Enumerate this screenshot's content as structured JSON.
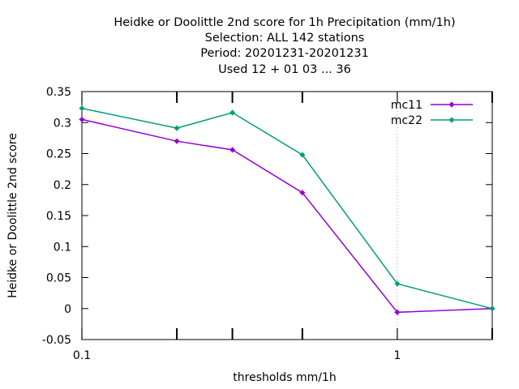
{
  "chart_data": {
    "type": "line",
    "title_lines": [
      "Heidke or Doolittle 2nd score  for 1h Precipitation (mm/1h)",
      "Selection: ALL    142 stations",
      "Period: 20201231-20201231",
      "Used  12 + 01 03 ... 36"
    ],
    "xlabel": "thresholds mm/1h",
    "ylabel": "Heidke or Doolittle 2nd score",
    "x_scale": "log",
    "xlim": [
      0.1,
      2
    ],
    "ylim": [
      -0.05,
      0.35
    ],
    "x_tick_labels": [
      "0.1",
      "1"
    ],
    "x_minor_ticks": [
      0.2,
      0.3,
      0.5,
      2
    ],
    "y_ticks": [
      -0.05,
      0,
      0.05,
      0.1,
      0.15,
      0.2,
      0.25,
      0.3,
      0.35
    ],
    "y_tick_labels": [
      "-0.05",
      "0",
      "0.05",
      "0.1",
      "0.15",
      "0.2",
      "0.25",
      "0.3",
      "0.35"
    ],
    "grid": "dotted vertical line at x = 1",
    "legend_position": "top-right",
    "series": [
      {
        "name": "mc11",
        "color": "#9400d3",
        "x": [
          0.1,
          0.2,
          0.3,
          0.5,
          1,
          2
        ],
        "y": [
          0.305,
          0.27,
          0.256,
          0.187,
          -0.006,
          0.0
        ]
      },
      {
        "name": "mc22",
        "color": "#009e73",
        "x": [
          0.1,
          0.2,
          0.3,
          0.5,
          1,
          2
        ],
        "y": [
          0.323,
          0.291,
          0.316,
          0.248,
          0.04,
          0.0
        ]
      }
    ]
  }
}
